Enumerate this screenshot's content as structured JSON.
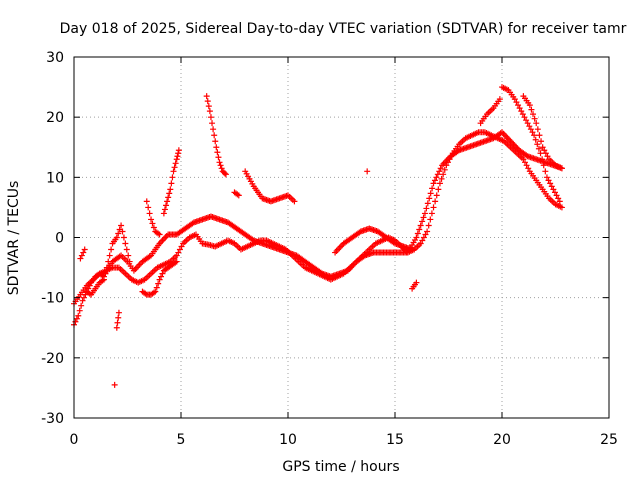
{
  "chart_data": {
    "type": "scatter",
    "title": "Day 018 of 2025, Sidereal Day-to-day VTEC variation (SDTVAR) for receiver tamr",
    "xlabel": "GPS time / hours",
    "ylabel": "SDTVAR / TECUs",
    "xlim": [
      0,
      25
    ],
    "ylim": [
      -30,
      30
    ],
    "xticks": [
      0,
      5,
      10,
      15,
      20,
      25
    ],
    "yticks": [
      -30,
      -20,
      -10,
      0,
      10,
      20,
      30
    ],
    "xtick_labels": [
      "0",
      "5",
      "10",
      "15",
      "20",
      "25"
    ],
    "ytick_labels": [
      "-30",
      "-20",
      "-10",
      "0",
      "10",
      "20",
      "30"
    ],
    "grid": true,
    "marker": "+",
    "color": "#ff0000",
    "series": [
      {
        "name": "s1",
        "x": [
          0.0,
          0.2,
          0.4,
          0.6,
          0.8,
          1.0,
          1.2,
          1.4,
          1.6,
          1.8,
          2.0,
          2.2,
          2.5,
          2.8,
          3.2,
          3.6,
          4.0,
          4.4,
          4.8,
          5.2,
          5.6,
          6.0,
          6.4,
          6.8,
          7.2,
          7.6,
          8.0,
          8.4,
          8.8,
          9.2,
          9.6,
          10.0,
          10.4,
          10.8,
          11.2,
          11.6,
          12.0,
          12.4,
          12.8,
          13.2,
          13.6,
          14.0,
          14.4,
          14.8,
          15.2,
          15.6,
          16.0,
          16.4,
          16.8,
          17.2,
          17.6,
          18.0,
          18.4,
          18.8,
          19.2,
          19.6,
          20.0,
          20.4,
          20.8,
          21.2,
          21.6,
          22.0,
          22.4,
          22.8
        ],
        "y": [
          -14.5,
          -13,
          -10.5,
          -9,
          -7.5,
          -6.5,
          -6,
          -6.5,
          -5,
          -4,
          -3.5,
          -3,
          -4,
          -5.5,
          -4,
          -3,
          -1,
          0.5,
          0.5,
          1.5,
          2.5,
          3,
          3.5,
          3,
          2.5,
          1.5,
          0.5,
          -0.5,
          -1,
          -1.5,
          -2,
          -2.5,
          -3,
          -4,
          -5,
          -6,
          -6.5,
          -6,
          -5.5,
          -4,
          -3,
          -2.5,
          -2.5,
          -2.5,
          -2.5,
          -2.5,
          0,
          4,
          9,
          12,
          13.5,
          14.5,
          15,
          15.5,
          16,
          16.5,
          17.5,
          16,
          14.5,
          13.5,
          13,
          12.5,
          12,
          11.5
        ]
      },
      {
        "name": "s2",
        "x": [
          0.0,
          0.3,
          0.6,
          0.9,
          1.2,
          1.5,
          1.8,
          2.1,
          2.4,
          2.7,
          3.0,
          3.3,
          3.6,
          3.9,
          4.2,
          4.5,
          4.8,
          5.1,
          5.4,
          5.7,
          6.0,
          6.3,
          6.6,
          6.9,
          7.2,
          7.5,
          7.8,
          8.1,
          8.4,
          8.7,
          9.0,
          9.3,
          9.6,
          9.9,
          10.2,
          10.5,
          10.8,
          11.1,
          11.4,
          11.7,
          12.0,
          12.3,
          12.6,
          12.9,
          13.2,
          13.5,
          13.8,
          14.1,
          14.4,
          14.7,
          15.0,
          15.3,
          15.6,
          15.9,
          16.2,
          16.5,
          16.8,
          17.1,
          17.4,
          17.7,
          18.0,
          18.3,
          18.6,
          18.9,
          19.2,
          19.5,
          19.8,
          20.1,
          20.4,
          20.7,
          21.0,
          21.3,
          21.6,
          21.9,
          22.2,
          22.5,
          22.8
        ],
        "y": [
          -11,
          -9.5,
          -8,
          -7,
          -6,
          -5.5,
          -5,
          -5,
          -6,
          -7,
          -7.5,
          -7,
          -6,
          -5,
          -4.5,
          -4,
          -3,
          -1,
          0,
          0.5,
          -1,
          -1.2,
          -1.5,
          -1,
          -0.5,
          -1,
          -2,
          -1.5,
          -1,
          -0.5,
          -0.5,
          -1,
          -1.5,
          -2,
          -3,
          -4,
          -5,
          -5.5,
          -6,
          -6.5,
          -7,
          -6.5,
          -6,
          -5,
          -4,
          -3,
          -2,
          -1,
          -0.5,
          0,
          -0.5,
          -1.5,
          -2.5,
          -2,
          -1,
          1,
          5,
          9,
          12,
          14,
          15.5,
          16.5,
          17,
          17.5,
          17.5,
          17,
          16.5,
          16,
          15,
          14,
          13,
          11,
          9.5,
          8,
          6.5,
          5.5,
          5
        ]
      },
      {
        "name": "s3",
        "x": [
          6.2,
          6.35,
          6.5,
          6.65,
          6.8,
          6.95,
          7.1,
          8.0,
          8.4,
          8.8,
          9.2,
          9.6,
          10.0,
          10.3
        ],
        "y": [
          23.5,
          21,
          18,
          15,
          12.5,
          11,
          10.5,
          11,
          8.5,
          6.5,
          6,
          6.5,
          7,
          6
        ]
      },
      {
        "name": "s4",
        "x": [
          4.2,
          4.35,
          4.5,
          4.65,
          4.8,
          4.9,
          3.4,
          3.6,
          3.8,
          4.0
        ],
        "y": [
          4,
          6,
          8,
          11,
          13,
          14.5,
          6,
          3,
          1,
          0.5
        ]
      },
      {
        "name": "s5",
        "x": [
          20.0,
          20.3,
          20.6,
          20.9,
          21.2,
          21.5,
          21.8,
          22.1,
          22.4,
          22.7,
          19.0,
          19.3,
          19.6,
          19.9
        ],
        "y": [
          25,
          24.5,
          23,
          21,
          19,
          17,
          14,
          10,
          8,
          6,
          19,
          20.5,
          21.5,
          23
        ]
      },
      {
        "name": "s6",
        "x": [
          0.6,
          0.8,
          1.0,
          1.2,
          1.4,
          1.6,
          1.8,
          2.0,
          2.2,
          2.4,
          2.6,
          3.2,
          3.4,
          3.6,
          3.8,
          4.0,
          4.2,
          4.4,
          4.6,
          4.8
        ],
        "y": [
          -9,
          -9.5,
          -8.5,
          -7.5,
          -7,
          -4,
          -1,
          0,
          2,
          -1,
          -4,
          -9,
          -9.5,
          -9.5,
          -9,
          -7,
          -5.5,
          -5,
          -4.5,
          -4
        ]
      },
      {
        "name": "s7",
        "x": [
          21.0,
          21.3,
          21.6,
          21.9,
          22.2,
          22.5,
          22.8,
          12.2,
          12.6,
          13.0,
          13.4,
          13.8,
          14.2,
          14.6,
          15.0,
          15.4,
          15.8
        ],
        "y": [
          23.5,
          22,
          19,
          15,
          13,
          12,
          11.5,
          -2.5,
          -1,
          0,
          1,
          1.5,
          1,
          0,
          -1,
          -1.5,
          -2
        ]
      },
      {
        "name": "s8",
        "x": [
          1.9,
          2.0,
          2.1,
          15.8,
          16.0,
          13.7,
          7.5,
          7.7,
          0.3,
          0.5
        ],
        "y": [
          -24.5,
          -15,
          -12.5,
          -8.5,
          -7.5,
          11,
          7.5,
          7,
          -3.5,
          -2
        ]
      }
    ]
  }
}
